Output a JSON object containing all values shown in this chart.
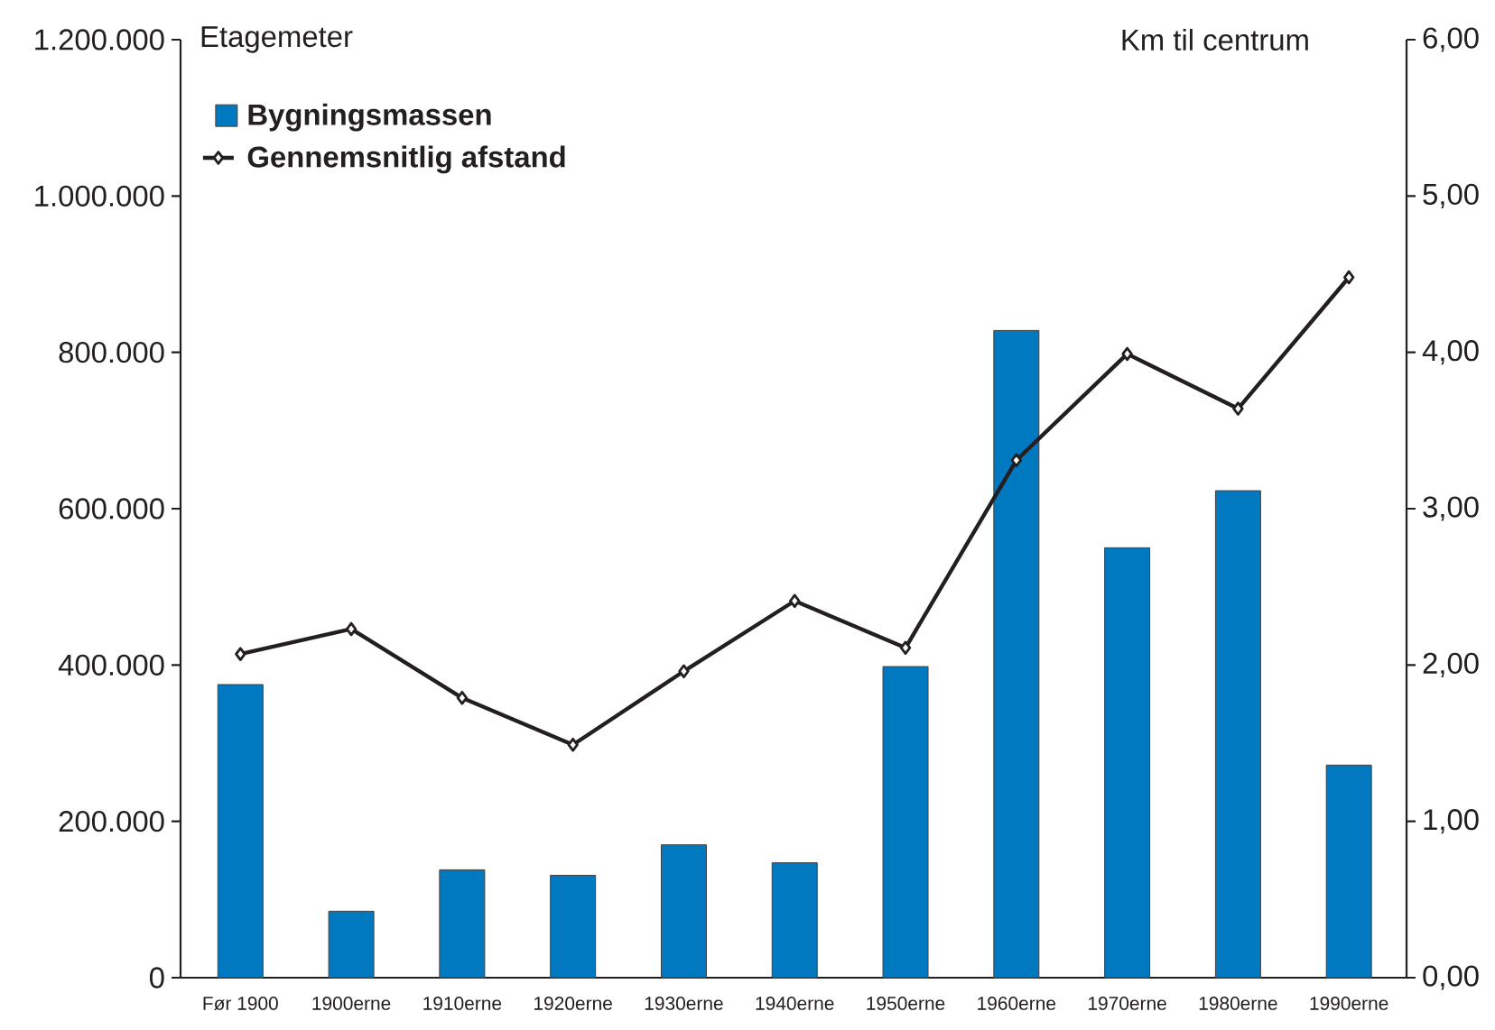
{
  "chart_data": {
    "type": "bar",
    "ylabel": "Etagemeter",
    "y2label": "Km til centrum",
    "categories": [
      "Før 1900",
      "1900erne",
      "1910erne",
      "1920erne",
      "1930erne",
      "1940erne",
      "1950erne",
      "1960erne",
      "1970erne",
      "1980erne",
      "1990erne"
    ],
    "series": [
      {
        "name": "Bygningsmassen",
        "color": "#0079c1",
        "values": [
          375000,
          85000,
          138000,
          131000,
          170000,
          147000,
          398000,
          828000,
          550000,
          623000,
          272000
        ]
      },
      {
        "name": "Gennemsnitlig afstand",
        "type": "line",
        "axis": "y2",
        "color": "#231f20",
        "marker": "diamond",
        "values": [
          2.07,
          2.23,
          1.79,
          1.49,
          1.96,
          2.41,
          2.11,
          3.31,
          3.99,
          3.64,
          4.48
        ]
      }
    ],
    "ylim": [
      0,
      1200000
    ],
    "yticks": [
      {
        "value": 0,
        "label": "0"
      },
      {
        "value": 200000,
        "label": "200.000"
      },
      {
        "value": 400000,
        "label": "400.000"
      },
      {
        "value": 600000,
        "label": "600.000"
      },
      {
        "value": 800000,
        "label": "800.000"
      },
      {
        "value": 1000000,
        "label": "1.000.000"
      },
      {
        "value": 1200000,
        "label": "1.200.000"
      }
    ],
    "y2lim": [
      0,
      6
    ],
    "y2ticks": [
      {
        "value": 0,
        "label": "0,00"
      },
      {
        "value": 1,
        "label": "1,00"
      },
      {
        "value": 2,
        "label": "2,00"
      },
      {
        "value": 3,
        "label": "3,00"
      },
      {
        "value": 4,
        "label": "4,00"
      },
      {
        "value": 5,
        "label": "5,00"
      },
      {
        "value": 6,
        "label": "6,00"
      }
    ],
    "legend": "top left"
  }
}
